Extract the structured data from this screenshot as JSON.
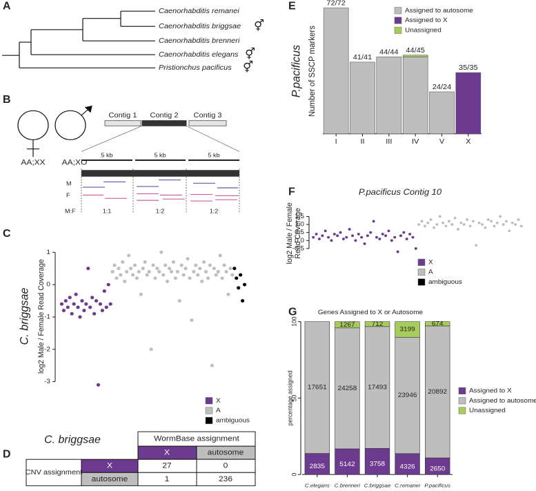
{
  "panel_labels": [
    "A",
    "B",
    "C",
    "D",
    "E",
    "F",
    "G"
  ],
  "tree": {
    "leaves": [
      {
        "label": "Caenorhabditis remanei"
      },
      {
        "label": "Caenorhabditis  briggsae",
        "symbol": "⚥"
      },
      {
        "label": "Caenorhabditis  brenneri"
      },
      {
        "label": "Caenorhabditis elegans",
        "symbol": "⚥"
      },
      {
        "label": "Pristionchus pacificus",
        "symbol": "⚥"
      }
    ]
  },
  "diagram": {
    "genotypes": [
      "AA;XX",
      "AA;XO"
    ],
    "contigs": [
      "Contig 1",
      "Contig 2",
      "Contig 3"
    ],
    "segments": [
      "5 kb",
      "5 kb",
      "5 kb"
    ],
    "rows": [
      "M",
      "F",
      "M:F"
    ],
    "ratios": [
      "1:1",
      "1:2",
      "1:2"
    ]
  },
  "table": {
    "title": "C. briggsae",
    "column_header": "WormBase  assignment",
    "columns": [
      "X",
      "autosome"
    ],
    "row_header": "CNV assignment",
    "rows": [
      {
        "label": "X",
        "cells": [
          27,
          0
        ]
      },
      {
        "label": "autosome",
        "cells": [
          1,
          236
        ]
      }
    ]
  },
  "chart_data": [
    {
      "type": "bar",
      "stacked": true,
      "side_title": "P.pacificus",
      "ylabel": "Number of SSCP markers",
      "categories": [
        "I",
        "II",
        "III",
        "IV",
        "V",
        "X"
      ],
      "ylim": [
        0,
        72
      ],
      "legend": "top-right",
      "series": [
        {
          "name": "Assigned to autosome",
          "color": "#bebebe",
          "values": [
            72,
            41,
            44,
            44,
            24,
            0
          ]
        },
        {
          "name": "Assigned to X",
          "color": "#6c3a8e",
          "values": [
            0,
            0,
            0,
            0,
            0,
            35
          ]
        },
        {
          "name": "Unassigned",
          "color": "#a8cc5c",
          "values": [
            0,
            0,
            0,
            1,
            0,
            0
          ]
        }
      ],
      "bar_labels": [
        "72/72",
        "41/41",
        "44/44",
        "44/45",
        "24/24",
        "35/35"
      ]
    },
    {
      "type": "scatter",
      "title": "P.pacificus Contig 10",
      "ylabel": [
        "log2 Male / Female",
        "Read Coverage"
      ],
      "ylim": [
        -0.7,
        1.6
      ],
      "yticks": [
        -0.5,
        {
          "value": 0,
          "label": "0.0"
        },
        0.5,
        {
          "value": 1,
          "label": "1.0"
        },
        1.5
      ],
      "legend": "bottom-right",
      "series": [
        {
          "name": "X",
          "color": "#6c3a8e",
          "values": [
            0.2,
            0.4,
            0.1,
            0.3,
            0.6,
            0.2,
            0.0,
            0.4,
            0.3,
            0.5,
            0.1,
            0.2,
            0.7,
            0.3,
            0.0,
            0.4,
            0.2,
            -0.2,
            0.3,
            0.5,
            1.2,
            0.2,
            0.1,
            0.4,
            0.3,
            0.6,
            0.0,
            0.2,
            -0.7,
            0.3,
            0.5,
            0.1,
            0.4,
            0.2,
            -0.5
          ]
        },
        {
          "name": "A",
          "color": "#bebebe",
          "values": [
            1.0,
            1.2,
            0.9,
            1.1,
            1.3,
            0.8,
            1.0,
            1.5,
            1.1,
            0.9,
            1.2,
            1.0,
            1.4,
            0.7,
            1.1,
            1.0,
            1.3,
            0.9,
            1.2,
            -0.3,
            1.1,
            1.0,
            0.8,
            1.3,
            1.2,
            0.9,
            1.1,
            1.5,
            1.0,
            1.2,
            0.6,
            1.1,
            1.0,
            1.3,
            0.9
          ]
        },
        {
          "name": "ambiguous",
          "color": "#000000",
          "values": []
        }
      ]
    },
    {
      "type": "scatter",
      "side_title": "C. briggsae",
      "ylabel": [
        "log2 Male / Female Read Coverage"
      ],
      "ylim": [
        -3.1,
        1.2
      ],
      "yticks": [
        -3,
        -2,
        -1,
        0,
        1
      ],
      "legend": "bottom-right",
      "series": [
        {
          "name": "X",
          "color": "#6c3a8e",
          "values": [
            -0.6,
            -0.8,
            -0.5,
            -0.7,
            -0.4,
            -0.9,
            -0.6,
            -0.3,
            -0.7,
            -1.0,
            -0.5,
            -0.8,
            -0.6,
            0.5,
            -0.7,
            -0.4,
            -0.9,
            -0.5,
            -3.1,
            -0.6,
            -0.8,
            -0.2,
            -0.7,
            0.0,
            -0.6
          ]
        },
        {
          "name": "A",
          "color": "#bebebe",
          "values": [
            0.4,
            0.6,
            0.2,
            0.5,
            0.3,
            0.7,
            0.1,
            0.4,
            0.9,
            0.5,
            0.3,
            0.6,
            0.2,
            0.4,
            -0.3,
            0.5,
            0.7,
            0.3,
            0.4,
            -2.0,
            0.6,
            0.2,
            0.5,
            0.4,
            1.0,
            0.3,
            0.6,
            0.1,
            0.5,
            0.4,
            0.7,
            0.2,
            0.4,
            -0.5,
            0.6,
            0.3,
            0.5,
            0.8,
            0.2,
            -1.1,
            0.4,
            0.6,
            0.3,
            0.5,
            0.1,
            0.7,
            0.4,
            0.2,
            0.6,
            -2.5,
            0.5,
            0.3,
            0.4,
            0.9,
            0.2,
            0.6,
            0.4,
            -0.3,
            0.5,
            0.3
          ]
        },
        {
          "name": "ambiguous",
          "color": "#000000",
          "values": [
            0.5,
            0.2,
            -0.1,
            0.3,
            -0.5,
            0.0
          ]
        }
      ]
    },
    {
      "type": "bar",
      "stacked": true,
      "title": "Genes Assigned to X or Autosome",
      "ylabel": "percentage assigned",
      "categories": [
        "C.elegans",
        "C.brenneri",
        "C.briggsae",
        "C.remanei",
        "P.pacificus"
      ],
      "ylim": [
        0,
        100
      ],
      "yticks": [
        0,
        50,
        100
      ],
      "legend": "right",
      "series": [
        {
          "name": "Assigned to X",
          "color": "#6c3a8e",
          "values": [
            13.8,
            16.8,
            17.1,
            13.7,
            10.9
          ],
          "counts": [
            2835,
            5142,
            3758,
            4326,
            2650
          ]
        },
        {
          "name": "Assigned to autosome",
          "color": "#bebebe",
          "values": [
            86.2,
            79.1,
            79.7,
            76.1,
            86.3
          ],
          "counts": [
            17651,
            24258,
            17493,
            23946,
            20892
          ]
        },
        {
          "name": "Unassigned",
          "color": "#a8cc5c",
          "values": [
            0,
            4.1,
            3.2,
            10.2,
            2.8
          ],
          "counts": [
            null,
            1267,
            712,
            3199,
            674
          ]
        }
      ]
    }
  ]
}
